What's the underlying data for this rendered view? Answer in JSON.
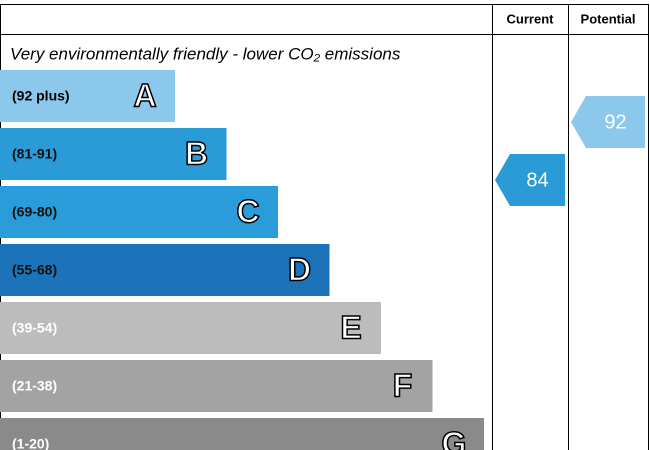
{
  "chart_data": {
    "type": "rating",
    "subtitle": "Very environmentally friendly - lower CO₂ emissions",
    "bands": [
      {
        "range": "(92 plus)",
        "letter": "A",
        "color": "#8cc8ec"
      },
      {
        "range": "(81-91)",
        "letter": "B",
        "color": "#2b9bd8"
      },
      {
        "range": "(69-80)",
        "letter": "C",
        "color": "#2a9cd9"
      },
      {
        "range": "(55-68)",
        "letter": "D",
        "color": "#1c73ba"
      },
      {
        "range": "(39-54)",
        "letter": "E",
        "color": "#bcbcbc"
      },
      {
        "range": "(21-38)",
        "letter": "F",
        "color": "#a3a3a3"
      },
      {
        "range": "(1-20)",
        "letter": "G",
        "color": "#8a8a8a"
      }
    ],
    "columns": [
      {
        "name": "Current",
        "value": 84
      },
      {
        "name": "Potential",
        "value": 92
      }
    ]
  }
}
